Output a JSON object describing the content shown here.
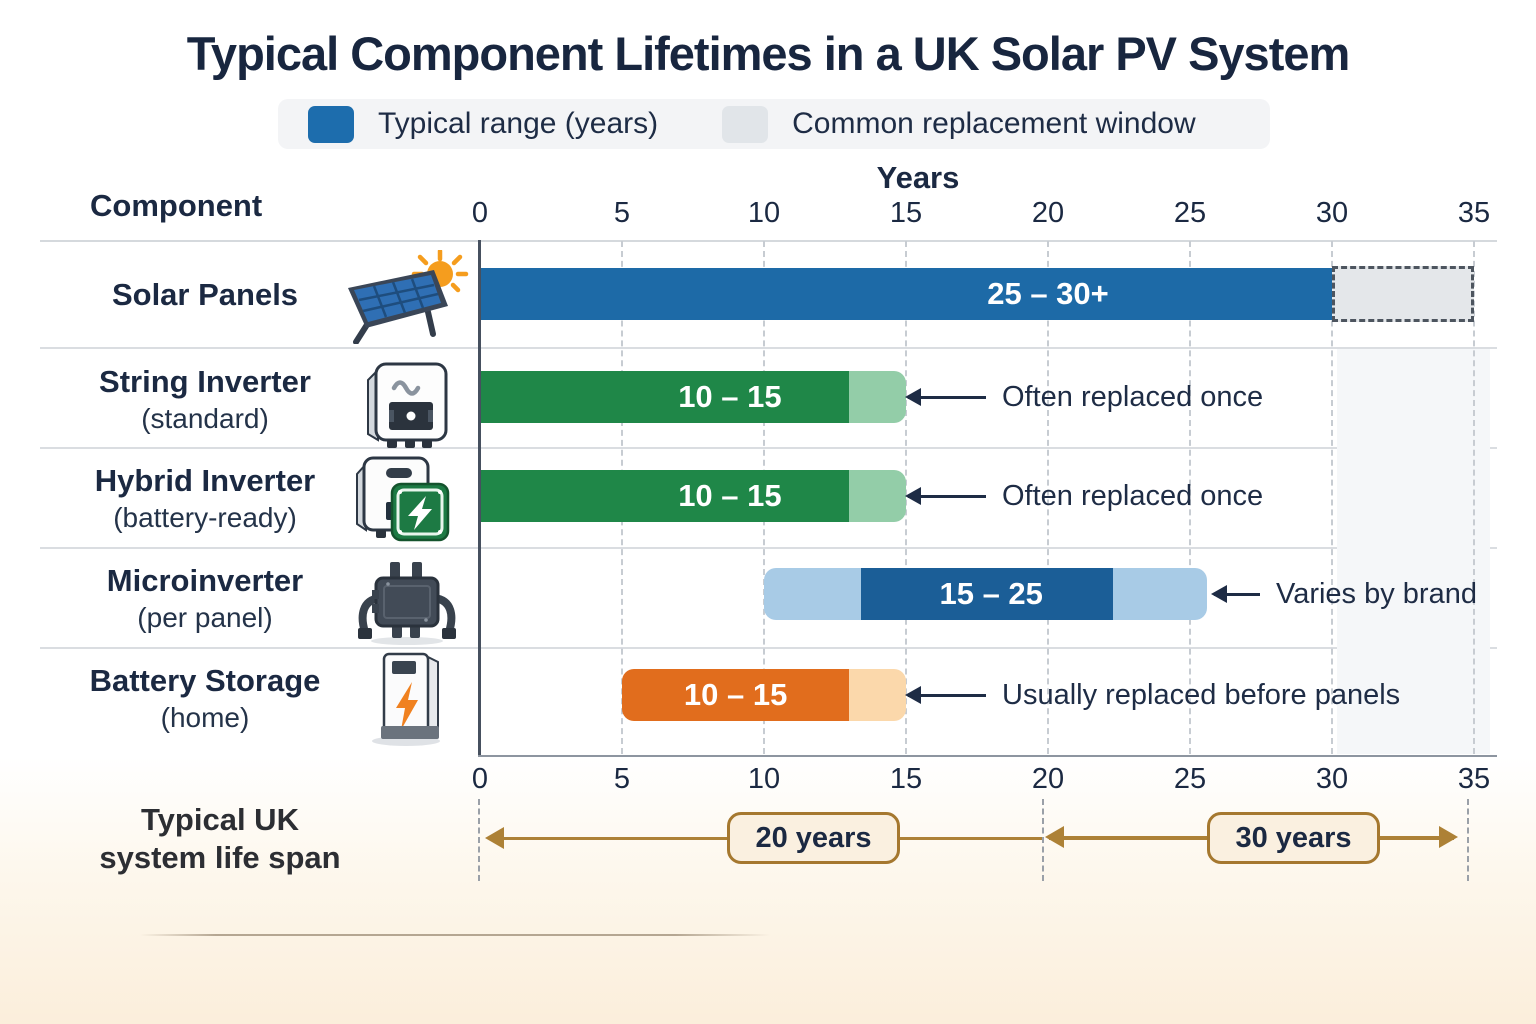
{
  "title": "Typical Component Lifetimes in a UK Solar PV System",
  "legend": {
    "typical": {
      "label": "Typical range (years)",
      "color": "#1d6dad"
    },
    "replacement": {
      "label": "Common replacement window",
      "color": "#e1e5e9"
    }
  },
  "axis": {
    "title": "Years",
    "column_header": "Component",
    "min": 0,
    "max": 35,
    "step": 5,
    "ticks": [
      "0",
      "5",
      "10",
      "15",
      "20",
      "25",
      "30",
      "35"
    ]
  },
  "chart_data": {
    "type": "bar",
    "orientation": "horizontal",
    "unit": "years",
    "x_range": [
      0,
      35
    ],
    "rows": [
      {
        "name": "Solar Panels",
        "subtitle": "",
        "icon": "solar-panel-icon",
        "bar_label": "25 – 30+",
        "label_center_year": 20,
        "segments": [
          {
            "from": 0,
            "to": 30,
            "color": "#1d6aa7",
            "kind": "typical-range"
          },
          {
            "from": 30,
            "to": 35,
            "color": "#e4e7ea",
            "kind": "common-replacement-window"
          }
        ],
        "annotation": ""
      },
      {
        "name": "String Inverter",
        "subtitle": "(standard)",
        "icon": "string-inverter-icon",
        "bar_label": "10 – 15",
        "label_center_year": 8.8,
        "segments": [
          {
            "from": 0,
            "to": 13,
            "color": "#1f8748",
            "kind": "typical-range"
          },
          {
            "from": 13,
            "to": 15,
            "color": "#93cda8",
            "kind": "upper-range"
          }
        ],
        "annotation": "Often replaced once"
      },
      {
        "name": "Hybrid Inverter",
        "subtitle": "(battery-ready)",
        "icon": "hybrid-inverter-icon",
        "bar_label": "10 – 15",
        "label_center_year": 8.8,
        "segments": [
          {
            "from": 0,
            "to": 13,
            "color": "#1f8748",
            "kind": "typical-range"
          },
          {
            "from": 13,
            "to": 15,
            "color": "#93cda8",
            "kind": "upper-range"
          }
        ],
        "annotation": "Often replaced once"
      },
      {
        "name": "Microinverter",
        "subtitle": "(per panel)",
        "icon": "microinverter-icon",
        "bar_label": "15 – 25",
        "label_center_year": 18,
        "segments": [
          {
            "from": 10,
            "to": 13.4,
            "color": "#a8cbe6",
            "kind": "lower-range"
          },
          {
            "from": 13.4,
            "to": 22.3,
            "color": "#1b5e97",
            "kind": "typical-range"
          },
          {
            "from": 22.3,
            "to": 25.6,
            "color": "#a8cbe6",
            "kind": "upper-range"
          }
        ],
        "annotation": "Varies by brand"
      },
      {
        "name": "Battery Storage",
        "subtitle": "(home)",
        "icon": "battery-storage-icon",
        "bar_label": "10 – 15",
        "label_center_year": 9,
        "segments": [
          {
            "from": 5,
            "to": 13,
            "color": "#e16d1d",
            "kind": "typical-range"
          },
          {
            "from": 13,
            "to": 15,
            "color": "#fbd8ab",
            "kind": "upper-range"
          }
        ],
        "annotation": "Usually replaced before panels"
      }
    ]
  },
  "footer": {
    "label_line1": "Typical UK",
    "label_line2": "system life span",
    "badges": [
      {
        "label": "20 years",
        "span_years": [
          0,
          20
        ]
      },
      {
        "label": "30 years",
        "span_years": [
          20,
          35
        ]
      }
    ]
  },
  "colors": {
    "title_navy": "#18263f",
    "bar_blue": "#1d6aa7",
    "bar_green": "#1f8748",
    "bar_green_light": "#93cda8",
    "bar_blue_dark": "#1b5e97",
    "bar_blue_light": "#a8cbe6",
    "bar_orange": "#e16d1d",
    "bar_orange_light": "#fbd8ab",
    "replacement_gray": "#e4e7ea",
    "lifespan_tan": "#ad8136",
    "badge_cream": "#faf0e0",
    "footer_cream": "#fbeedb"
  }
}
